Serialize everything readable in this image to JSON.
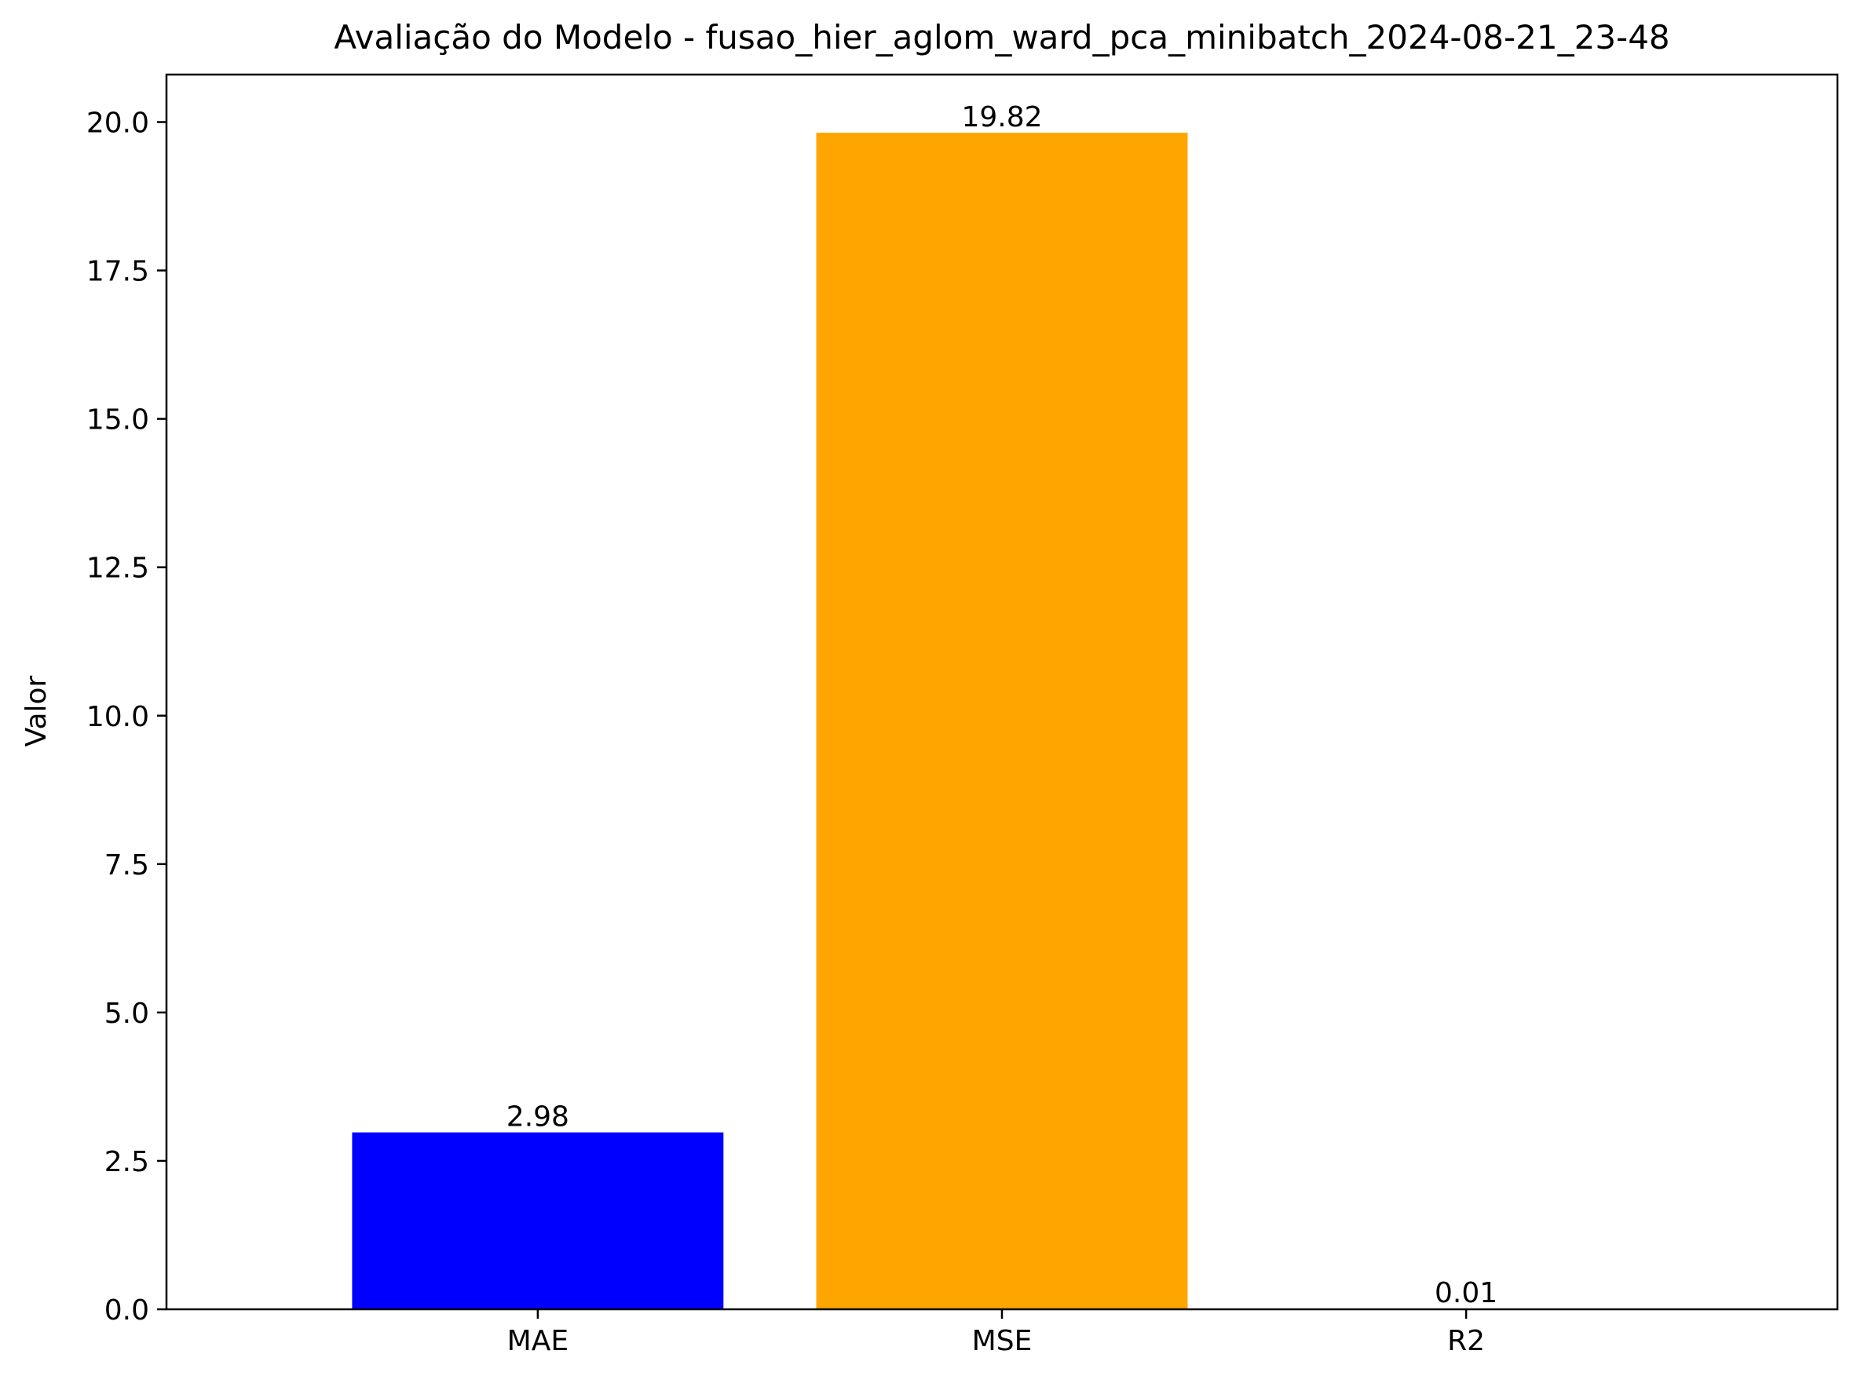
{
  "chart_data": {
    "type": "bar",
    "title": "Avaliação do Modelo - fusao_hier_aglom_ward_pca_minibatch_2024-08-21_23-48",
    "xlabel": "",
    "ylabel": "Valor",
    "categories": [
      "MAE",
      "MSE",
      "R2"
    ],
    "values": [
      2.98,
      19.82,
      0.01
    ],
    "value_labels": [
      "2.98",
      "19.82",
      "0.01"
    ],
    "colors": [
      "#0000ff",
      "#ffa500",
      "#008000"
    ],
    "ylim": [
      0,
      20.8
    ],
    "yticks": [
      0.0,
      2.5,
      5.0,
      7.5,
      10.0,
      12.5,
      15.0,
      17.5,
      20.0
    ],
    "ytick_labels": [
      "0.0",
      "2.5",
      "5.0",
      "7.5",
      "10.0",
      "12.5",
      "15.0",
      "17.5",
      "20.0"
    ],
    "grid": false,
    "legend": "none"
  }
}
